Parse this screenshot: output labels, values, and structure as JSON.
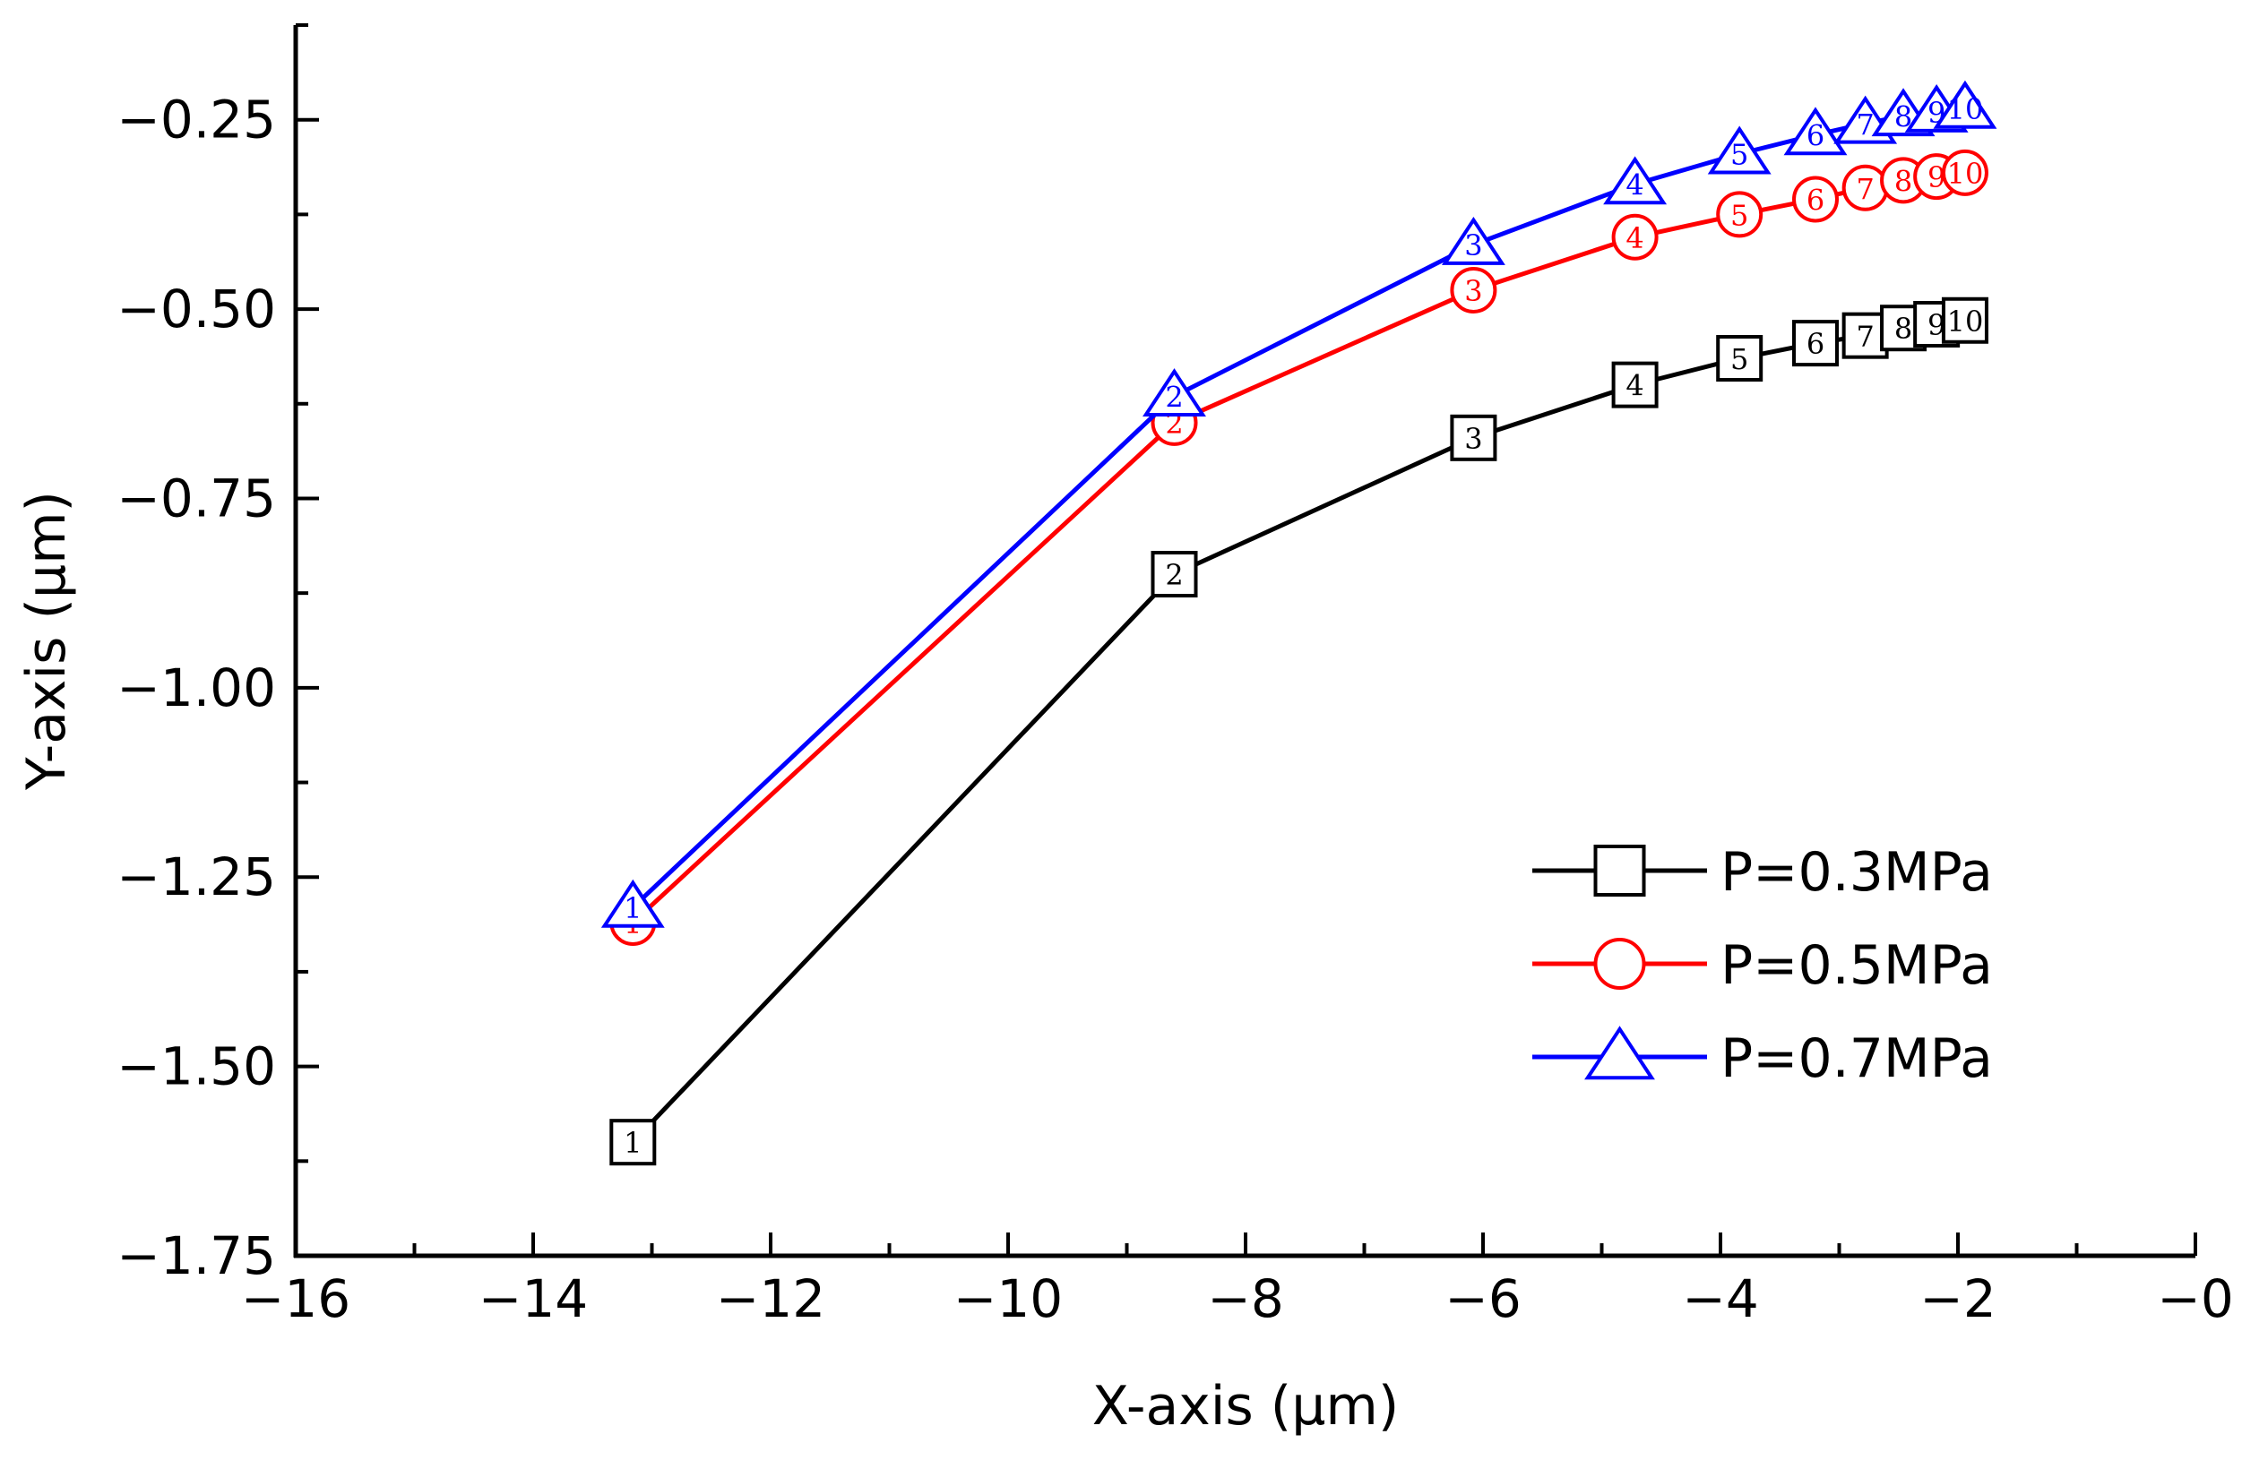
{
  "chart_data": {
    "type": "line",
    "xlabel": "X-axis (μm)",
    "ylabel": "Y-axis (μm)",
    "xlim": [
      -16,
      0
    ],
    "ylim": [
      -1.75,
      -0.125
    ],
    "x_ticks": [
      -16,
      -14,
      -12,
      -10,
      -8,
      -6,
      -4,
      -2,
      0
    ],
    "x_tick_labels": [
      "−16",
      "−14",
      "−12",
      "−10",
      "−8",
      "−6",
      "−4",
      "−2",
      "−0"
    ],
    "y_ticks": [
      -1.75,
      -1.5,
      -1.25,
      -1.0,
      -0.75,
      -0.5,
      -0.25
    ],
    "y_tick_labels": [
      "−1.75",
      "−1.50",
      "−1.25",
      "−1.00",
      "−0.75",
      "−0.50",
      "−0.25"
    ],
    "grid": false,
    "legend_position": "bottom-right",
    "series": [
      {
        "name": "P=0.3MPa",
        "color": "#000000",
        "marker": "square",
        "point_labels": [
          "1",
          "2",
          "3",
          "4",
          "5",
          "6",
          "7",
          "8",
          "9",
          "10"
        ],
        "x": [
          -13.16,
          -8.6,
          -6.08,
          -4.72,
          -3.84,
          -3.2,
          -2.78,
          -2.46,
          -2.18,
          -1.94
        ],
        "y": [
          -1.6,
          -0.85,
          -0.67,
          -0.6,
          -0.565,
          -0.545,
          -0.535,
          -0.525,
          -0.52,
          -0.515
        ]
      },
      {
        "name": "P=0.5MPa",
        "color": "#ff0000",
        "marker": "circle",
        "point_labels": [
          "1",
          "2",
          "3",
          "4",
          "5",
          "6",
          "7",
          "8",
          "9",
          "10"
        ],
        "x": [
          -13.16,
          -8.6,
          -6.08,
          -4.72,
          -3.84,
          -3.2,
          -2.78,
          -2.46,
          -2.18,
          -1.94
        ],
        "y": [
          -1.31,
          -0.65,
          -0.475,
          -0.405,
          -0.375,
          -0.355,
          -0.34,
          -0.33,
          -0.325,
          -0.32
        ]
      },
      {
        "name": "P=0.7MPa",
        "color": "#0000ff",
        "marker": "triangle",
        "point_labels": [
          "1",
          "2",
          "3",
          "4",
          "5",
          "6",
          "7",
          "8",
          "9",
          "10"
        ],
        "x": [
          -13.16,
          -8.6,
          -6.08,
          -4.72,
          -3.84,
          -3.2,
          -2.78,
          -2.46,
          -2.18,
          -1.94
        ],
        "y": [
          -1.29,
          -0.615,
          -0.415,
          -0.335,
          -0.295,
          -0.27,
          -0.255,
          -0.245,
          -0.24,
          -0.235
        ]
      }
    ]
  }
}
